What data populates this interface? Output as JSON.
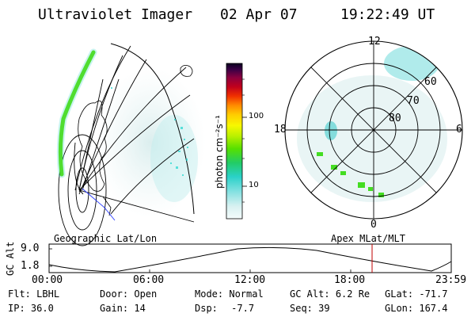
{
  "header": {
    "instrument": "Ultraviolet Imager",
    "date": "02 Apr 07",
    "time": "19:22:49 UT"
  },
  "colorbar": {
    "label": "photon cm⁻²s⁻¹",
    "ticks": [
      "100",
      "10"
    ]
  },
  "polar": {
    "hour_labels": [
      "12",
      "18",
      "6",
      "0"
    ],
    "lat_labels": [
      "60",
      "70",
      "80"
    ]
  },
  "panel_labels": {
    "left": "Geographic Lat/Lon",
    "right": "Apex MLat/MLT"
  },
  "altitude_plot": {
    "axis_label": "GC Alt",
    "y_ticks": [
      "9.0",
      "1.8"
    ],
    "x_ticks": [
      "00:00",
      "06:00",
      "12:00",
      "18:00",
      "23:59"
    ],
    "current_time_marker_color": "#c00000"
  },
  "info": {
    "filter_label": "Flt:",
    "filter_value": "LBHL",
    "ip_label": "IP:",
    "ip_value": "36.0",
    "door_label": "Door:",
    "door_value": "Open",
    "gain_label": "Gain:",
    "gain_value": "14",
    "mode_label": "Mode:",
    "mode_value": "Normal",
    "dsp_label": "Dsp:",
    "dsp_value": "-7.7",
    "gcalt_label": "GC Alt:",
    "gcalt_value": "6.2 Re",
    "seq_label": "Seq:",
    "seq_value": "39",
    "glat_label": "GLat:",
    "glat_value": "-71.7",
    "glon_label": "GLon:",
    "glon_value": "167.4"
  }
}
